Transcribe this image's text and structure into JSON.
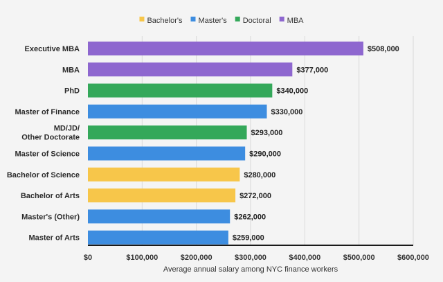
{
  "chart_data": {
    "type": "bar",
    "orientation": "horizontal",
    "xlabel": "Average annual salary among NYC finance workers",
    "xlim": [
      0,
      600000
    ],
    "xticks": [
      0,
      100000,
      200000,
      300000,
      400000,
      500000,
      600000
    ],
    "xtick_labels": [
      "$0",
      "$100,000",
      "$200,000",
      "$300,000",
      "$400,000",
      "$500,000",
      "$600,000"
    ],
    "grid": true,
    "legend_position": "top",
    "legend": [
      {
        "name": "Bachelor's",
        "color": "#f7c64a"
      },
      {
        "name": "Master's",
        "color": "#3d8de0"
      },
      {
        "name": "Doctoral",
        "color": "#34a85a"
      },
      {
        "name": "MBA",
        "color": "#8e67cf"
      }
    ],
    "bars": [
      {
        "label": [
          "Executive MBA"
        ],
        "value": 508000,
        "value_label": "$508,000",
        "group": "MBA"
      },
      {
        "label": [
          "MBA"
        ],
        "value": 377000,
        "value_label": "$377,000",
        "group": "MBA"
      },
      {
        "label": [
          "PhD"
        ],
        "value": 340000,
        "value_label": "$340,000",
        "group": "Doctoral"
      },
      {
        "label": [
          "Master of Finance"
        ],
        "value": 330000,
        "value_label": "$330,000",
        "group": "Master's"
      },
      {
        "label": [
          "MD/JD/",
          "Other Doctorate"
        ],
        "value": 293000,
        "value_label": "$293,000",
        "group": "Doctoral"
      },
      {
        "label": [
          "Master of Science"
        ],
        "value": 290000,
        "value_label": "$290,000",
        "group": "Master's"
      },
      {
        "label": [
          "Bachelor of Science"
        ],
        "value": 280000,
        "value_label": "$280,000",
        "group": "Bachelor's"
      },
      {
        "label": [
          "Bachelor of Arts"
        ],
        "value": 272000,
        "value_label": "$272,000",
        "group": "Bachelor's"
      },
      {
        "label": [
          "Master's (Other)"
        ],
        "value": 262000,
        "value_label": "$262,000",
        "group": "Master's"
      },
      {
        "label": [
          "Master of Arts"
        ],
        "value": 259000,
        "value_label": "$259,000",
        "group": "Master's"
      }
    ]
  }
}
